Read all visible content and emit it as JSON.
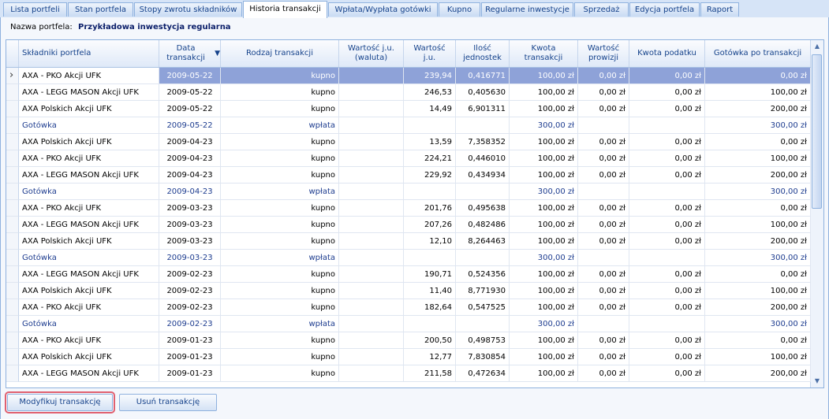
{
  "tabs": [
    {
      "label": "Lista portfeli",
      "active": false
    },
    {
      "label": "Stan portfela",
      "active": false
    },
    {
      "label": "Stopy zwrotu składników",
      "active": false
    },
    {
      "label": "Historia transakcji",
      "active": true
    },
    {
      "label": "Wpłata/Wypłata gotówki",
      "active": false
    },
    {
      "label": "Kupno",
      "active": false
    },
    {
      "label": "Regularne inwestycje",
      "active": false
    },
    {
      "label": "Sprzedaż",
      "active": false
    },
    {
      "label": "Edycja portfela",
      "active": false
    },
    {
      "label": "Raport",
      "active": false
    }
  ],
  "portfolio": {
    "label": "Nazwa portfela:",
    "name": "Przykładowa inwestycja regularna"
  },
  "columns": [
    "Składniki portfela",
    "Data transakcji",
    "Rodzaj transakcji",
    "Wartość j.u. (waluta)",
    "Wartość j.u.",
    "Ilość jednostek",
    "Kwota transakcji",
    "Wartość prowizji",
    "Kwota podatku",
    "Gotówka po transakcji"
  ],
  "sort_indicator": "▼",
  "rows": [
    [
      "AXA - PKO Akcji UFK",
      "2009-05-22",
      "kupno",
      "",
      "239,94",
      "0,416771",
      "100,00 zł",
      "0,00 zł",
      "0,00 zł",
      "0,00 zł"
    ],
    [
      "AXA - LEGG MASON Akcji UFK",
      "2009-05-22",
      "kupno",
      "",
      "246,53",
      "0,405630",
      "100,00 zł",
      "0,00 zł",
      "0,00 zł",
      "100,00 zł"
    ],
    [
      "AXA Polskich Akcji UFK",
      "2009-05-22",
      "kupno",
      "",
      "14,49",
      "6,901311",
      "100,00 zł",
      "0,00 zł",
      "0,00 zł",
      "200,00 zł"
    ],
    [
      "Gotówka",
      "2009-05-22",
      "wpłata",
      "",
      "",
      "",
      "300,00 zł",
      "",
      "",
      "300,00 zł"
    ],
    [
      "AXA Polskich Akcji UFK",
      "2009-04-23",
      "kupno",
      "",
      "13,59",
      "7,358352",
      "100,00 zł",
      "0,00 zł",
      "0,00 zł",
      "0,00 zł"
    ],
    [
      "AXA - PKO Akcji UFK",
      "2009-04-23",
      "kupno",
      "",
      "224,21",
      "0,446010",
      "100,00 zł",
      "0,00 zł",
      "0,00 zł",
      "100,00 zł"
    ],
    [
      "AXA - LEGG MASON Akcji UFK",
      "2009-04-23",
      "kupno",
      "",
      "229,92",
      "0,434934",
      "100,00 zł",
      "0,00 zł",
      "0,00 zł",
      "200,00 zł"
    ],
    [
      "Gotówka",
      "2009-04-23",
      "wpłata",
      "",
      "",
      "",
      "300,00 zł",
      "",
      "",
      "300,00 zł"
    ],
    [
      "AXA - PKO Akcji UFK",
      "2009-03-23",
      "kupno",
      "",
      "201,76",
      "0,495638",
      "100,00 zł",
      "0,00 zł",
      "0,00 zł",
      "0,00 zł"
    ],
    [
      "AXA - LEGG MASON Akcji UFK",
      "2009-03-23",
      "kupno",
      "",
      "207,26",
      "0,482486",
      "100,00 zł",
      "0,00 zł",
      "0,00 zł",
      "100,00 zł"
    ],
    [
      "AXA Polskich Akcji UFK",
      "2009-03-23",
      "kupno",
      "",
      "12,10",
      "8,264463",
      "100,00 zł",
      "0,00 zł",
      "0,00 zł",
      "200,00 zł"
    ],
    [
      "Gotówka",
      "2009-03-23",
      "wpłata",
      "",
      "",
      "",
      "300,00 zł",
      "",
      "",
      "300,00 zł"
    ],
    [
      "AXA - LEGG MASON Akcji UFK",
      "2009-02-23",
      "kupno",
      "",
      "190,71",
      "0,524356",
      "100,00 zł",
      "0,00 zł",
      "0,00 zł",
      "0,00 zł"
    ],
    [
      "AXA Polskich Akcji UFK",
      "2009-02-23",
      "kupno",
      "",
      "11,40",
      "8,771930",
      "100,00 zł",
      "0,00 zł",
      "0,00 zł",
      "100,00 zł"
    ],
    [
      "AXA - PKO Akcji UFK",
      "2009-02-23",
      "kupno",
      "",
      "182,64",
      "0,547525",
      "100,00 zł",
      "0,00 zł",
      "0,00 zł",
      "200,00 zł"
    ],
    [
      "Gotówka",
      "2009-02-23",
      "wpłata",
      "",
      "",
      "",
      "300,00 zł",
      "",
      "",
      "300,00 zł"
    ],
    [
      "AXA - PKO Akcji UFK",
      "2009-01-23",
      "kupno",
      "",
      "200,50",
      "0,498753",
      "100,00 zł",
      "0,00 zł",
      "0,00 zł",
      "0,00 zł"
    ],
    [
      "AXA Polskich Akcji UFK",
      "2009-01-23",
      "kupno",
      "",
      "12,77",
      "7,830854",
      "100,00 zł",
      "0,00 zł",
      "0,00 zł",
      "100,00 zł"
    ],
    [
      "AXA - LEGG MASON Akcji UFK",
      "2009-01-23",
      "kupno",
      "",
      "211,58",
      "0,472634",
      "100,00 zł",
      "0,00 zł",
      "0,00 zł",
      "200,00 zł"
    ]
  ],
  "selected_row": 0,
  "buttons": {
    "modify": "Modyfikuj transakcję",
    "delete": "Usuń transakcję"
  },
  "colors": {
    "accent": "#15428b",
    "selection": "#8ea2d8",
    "cash_text": "#1d3c8f",
    "focus_ring": "#e06070"
  },
  "icons": {
    "row_pointer": "row-pointer-icon",
    "sort": "sort-descending-icon",
    "scroll_up": "scroll-up-icon",
    "scroll_down": "scroll-down-icon"
  }
}
